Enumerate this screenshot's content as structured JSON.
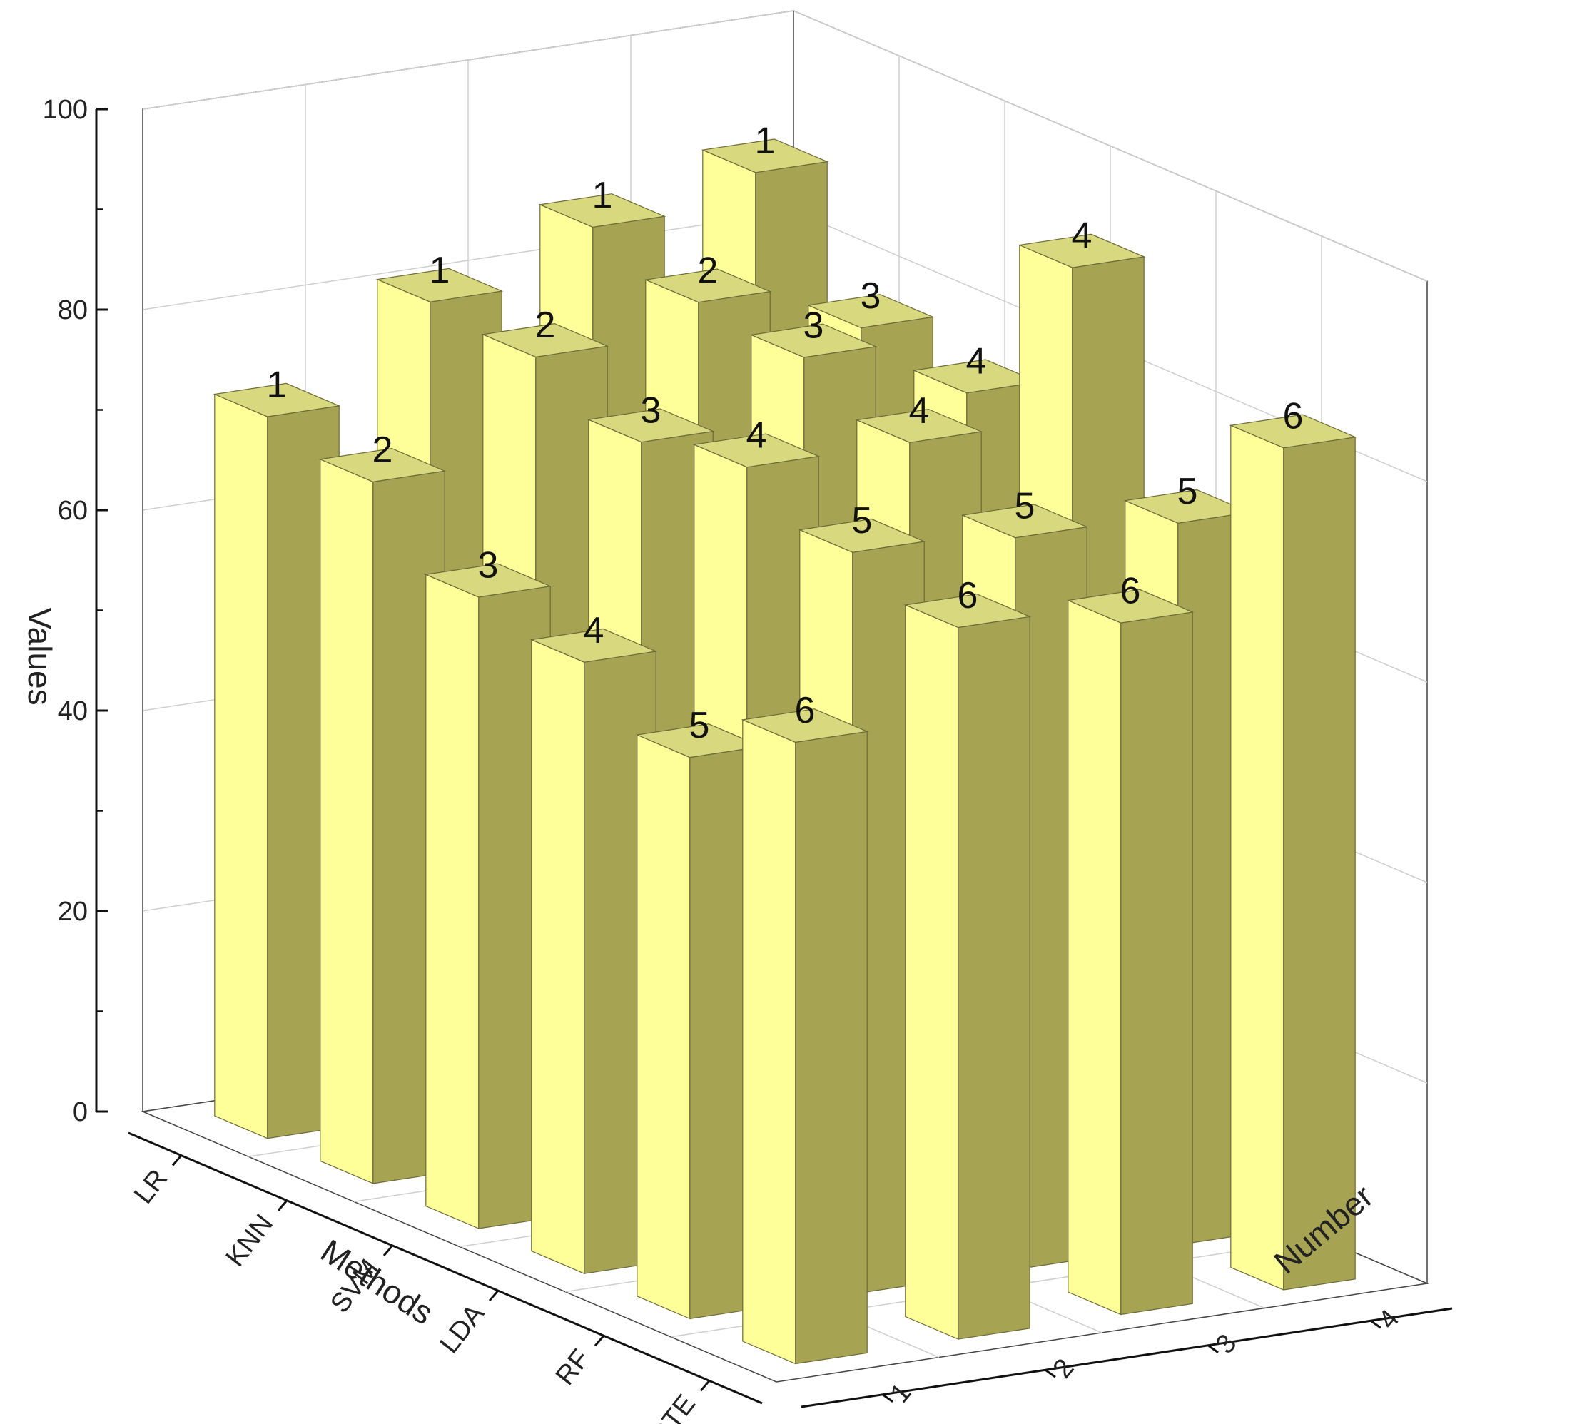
{
  "chart_data": {
    "type": "bar3d",
    "title": "",
    "zlabel": "Values",
    "xlabel": "Methods",
    "ylabel": "Number",
    "zlim": [
      0,
      100
    ],
    "z_ticks": [
      "0",
      "20",
      "40",
      "60",
      "80",
      "100"
    ],
    "methods": [
      "LR",
      "KNN",
      "SVM",
      "LDA",
      "RF",
      "VOTE"
    ],
    "numbers": [
      "1",
      "2",
      "3",
      "4"
    ],
    "grid": true,
    "bar_color": "#ffff99",
    "bar_side_color": "#a6a452",
    "bar_top_color": "#d8d87e",
    "values": [
      [
        72,
        81,
        86,
        89
      ],
      [
        70,
        80,
        83,
        78
      ],
      [
        63,
        76,
        82,
        76
      ],
      [
        61,
        78,
        78,
        93
      ],
      [
        56,
        74,
        73,
        72
      ],
      [
        62,
        71,
        69,
        84
      ]
    ],
    "bar_labels": [
      [
        "1",
        "1",
        "1",
        "1"
      ],
      [
        "2",
        "2",
        "2",
        "3"
      ],
      [
        "3",
        "3",
        "3",
        "4"
      ],
      [
        "4",
        "4",
        "4",
        "4"
      ],
      [
        "5",
        "5",
        "5",
        "5"
      ],
      [
        "6",
        "6",
        "6",
        "6"
      ]
    ]
  }
}
